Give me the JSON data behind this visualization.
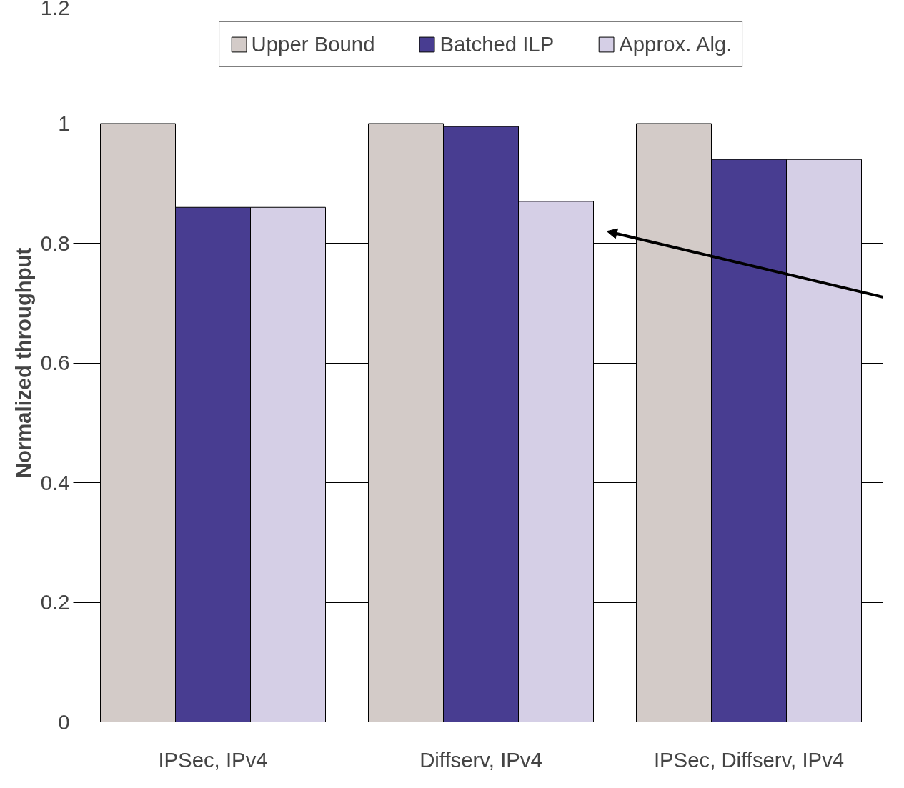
{
  "chart_data": {
    "type": "bar",
    "ylabel": "Normalized throughput",
    "categories": [
      "IPSec, IPv4",
      "Diffserv, IPv4",
      "IPSec, Diffserv, IPv4"
    ],
    "series": [
      {
        "name": "Upper Bound",
        "color": "#d3cbc8",
        "values": [
          1,
          1,
          1
        ]
      },
      {
        "name": "Batched ILP",
        "color": "#483d91",
        "values": [
          0.86,
          0.995,
          0.94
        ]
      },
      {
        "name": "Approx. Alg.",
        "color": "#d5cfe6",
        "values": [
          0.86,
          0.87,
          0.94
        ]
      }
    ],
    "ylim": [
      0,
      1.2
    ],
    "yticks": [
      0,
      0.2,
      0.4,
      0.6,
      0.8,
      1,
      1.2
    ],
    "grid": "y",
    "legend": "top"
  }
}
